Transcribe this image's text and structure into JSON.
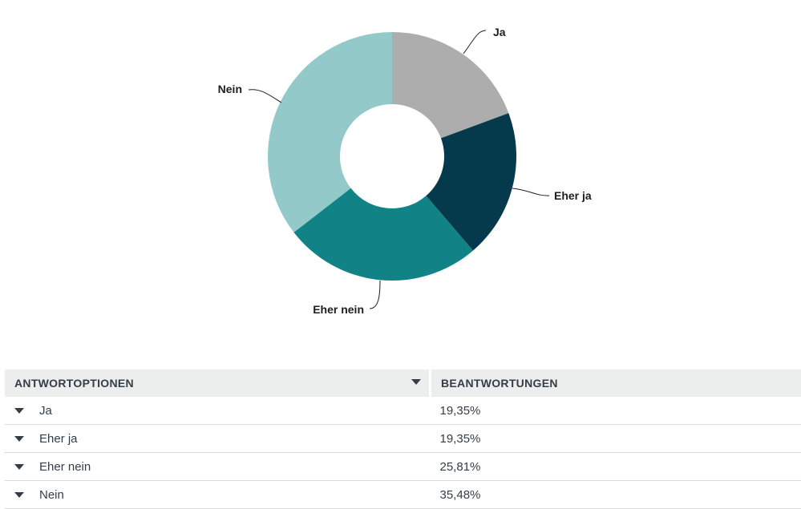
{
  "chart_data": {
    "type": "pie",
    "variant": "donut",
    "categories": [
      "Ja",
      "Eher ja",
      "Eher nein",
      "Nein"
    ],
    "values": [
      19.35,
      19.35,
      25.81,
      35.48
    ],
    "colors": [
      "#adadad",
      "#053a4d",
      "#118387",
      "#94c9ca"
    ],
    "labels": [
      "Ja",
      "Eher ja",
      "Eher nein",
      "Nein"
    ]
  },
  "table": {
    "headers": [
      "ANTWORTOPTIONEN",
      "BEANTWORTUNGEN"
    ],
    "rows": [
      {
        "option": "Ja",
        "value": "19,35%"
      },
      {
        "option": "Eher ja",
        "value": "19,35%"
      },
      {
        "option": "Eher nein",
        "value": "25,81%"
      },
      {
        "option": "Nein",
        "value": "35,48%"
      }
    ]
  }
}
